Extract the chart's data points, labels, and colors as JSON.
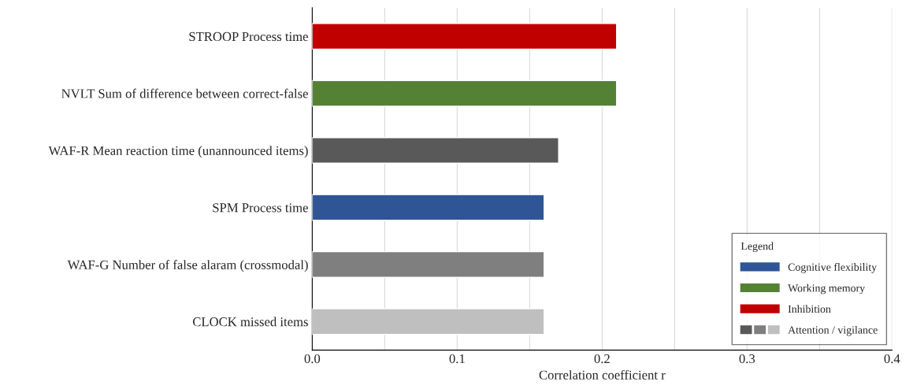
{
  "chart_data": {
    "type": "bar",
    "orientation": "horizontal",
    "categories": [
      "STROOP Process time",
      "NVLT Sum of difference between correct-false",
      "WAF-R Mean reaction time (unannounced items)",
      "SPM Process time",
      "WAF-G Number of false alaram (crossmodal)",
      "CLOCK missed items"
    ],
    "series": [
      {
        "name": "Cognitive flexibility",
        "color": "#2f5597",
        "values": [
          null,
          null,
          null,
          0.16,
          null,
          null
        ]
      },
      {
        "name": "Working memory",
        "color": "#548235",
        "values": [
          null,
          0.21,
          null,
          null,
          null,
          null
        ]
      },
      {
        "name": "Inhibition",
        "color": "#c00000",
        "values": [
          0.21,
          null,
          null,
          null,
          null,
          null
        ]
      },
      {
        "name": "Attention / vigilance",
        "colors": [
          null,
          null,
          "#595959",
          null,
          "#7f7f7f",
          "#bfbfbf"
        ],
        "values": [
          null,
          null,
          0.17,
          null,
          0.16,
          0.16
        ]
      }
    ],
    "xlabel": "Correlation coefficient r",
    "xlim": [
      0,
      0.4
    ],
    "xticks": [
      {
        "value": 0,
        "label": "0.0"
      },
      {
        "value": 0.05,
        "label": null
      },
      0.1,
      {
        "value": 0.15,
        "label": null
      },
      0.2,
      {
        "value": 0.25,
        "label": null
      },
      0.3,
      {
        "value": 0.35,
        "label": null
      },
      0.4
    ],
    "grid": "x",
    "legend": "bottom right",
    "legend_title": "Legend"
  }
}
